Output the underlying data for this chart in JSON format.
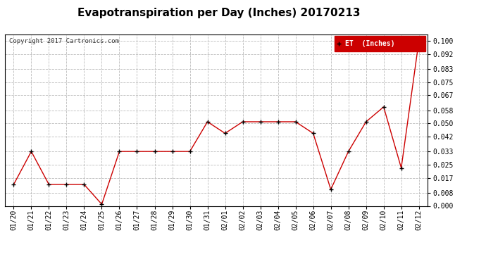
{
  "title": "Evapotranspiration per Day (Inches) 20170213",
  "copyright_text": "Copyright 2017 Cartronics.com",
  "legend_label": "ET  (Inches)",
  "x_labels": [
    "01/20",
    "01/21",
    "01/22",
    "01/23",
    "01/24",
    "01/25",
    "01/26",
    "01/27",
    "01/28",
    "01/29",
    "01/30",
    "01/31",
    "02/01",
    "02/02",
    "02/03",
    "02/04",
    "02/05",
    "02/06",
    "02/07",
    "02/08",
    "02/09",
    "02/10",
    "02/11",
    "02/12"
  ],
  "y_values": [
    0.013,
    0.033,
    0.013,
    0.013,
    0.013,
    0.001,
    0.033,
    0.033,
    0.033,
    0.033,
    0.033,
    0.051,
    0.044,
    0.051,
    0.051,
    0.051,
    0.051,
    0.044,
    0.01,
    0.033,
    0.051,
    0.06,
    0.023,
    0.1
  ],
  "y_ticks": [
    0.0,
    0.008,
    0.017,
    0.025,
    0.033,
    0.042,
    0.05,
    0.058,
    0.067,
    0.075,
    0.083,
    0.092,
    0.1
  ],
  "line_color": "#cc0000",
  "marker_color": "#000000",
  "legend_bg": "#cc0000",
  "legend_text_color": "#ffffff",
  "grid_color": "#bbbbbb",
  "background_color": "#ffffff",
  "title_fontsize": 11,
  "tick_fontsize": 7,
  "copyright_fontsize": 6.5,
  "ylim": [
    0.0,
    0.104
  ],
  "legend_fontsize": 7
}
